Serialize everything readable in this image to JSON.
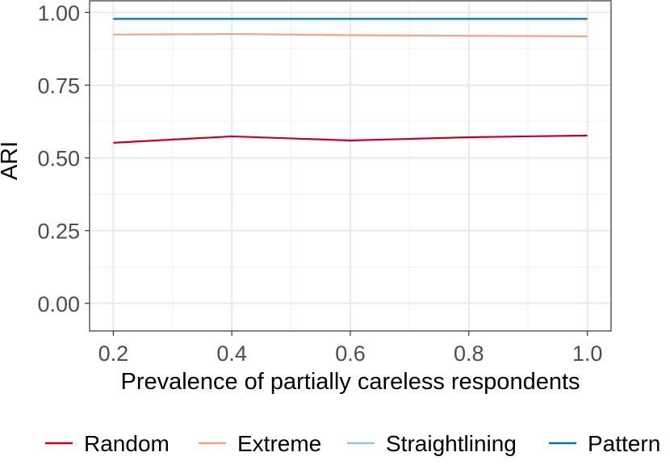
{
  "chart_data": {
    "type": "line",
    "x": [
      0.2,
      0.4,
      0.6,
      0.8,
      1.0
    ],
    "x_ticks": [
      "0.2",
      "0.4",
      "0.6",
      "0.8",
      "1.0"
    ],
    "y_ticks": [
      "0.00",
      "0.25",
      "0.50",
      "0.75",
      "1.00"
    ],
    "xlabel": "Prevalence of partially careless respondents",
    "ylabel": "ARI",
    "xlim": [
      0.16,
      1.04
    ],
    "ylim": [
      -0.095,
      1.04
    ],
    "grid": true,
    "legend_position": "bottom",
    "series": [
      {
        "name": "Random",
        "color": "#ca0020",
        "values": [
          0.552,
          0.574,
          0.56,
          0.571,
          0.577
        ]
      },
      {
        "name": "Extreme",
        "color": "#f4a582",
        "values": [
          0.924,
          0.926,
          0.922,
          0.92,
          0.918
        ]
      },
      {
        "name": "Straightlining",
        "color": "#92c5de",
        "values": [
          0.978,
          0.978,
          0.978,
          0.978,
          0.978
        ]
      },
      {
        "name": "Pattern",
        "color": "#0571b0",
        "values": [
          0.978,
          0.978,
          0.978,
          0.978,
          0.978
        ]
      }
    ]
  }
}
